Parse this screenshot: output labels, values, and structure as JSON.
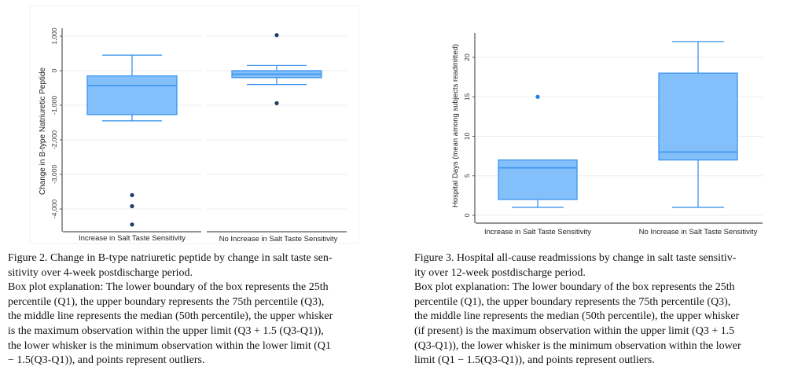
{
  "chart_data": [
    {
      "type": "box",
      "ylabel": "Change in B-type Natriuretic Peptide",
      "yticks": [
        1000,
        0,
        -1000,
        -2000,
        -3000,
        -4000
      ],
      "ytick_labels": [
        "1,000",
        "0",
        "-1,000",
        "-2,000",
        "-3,000",
        "-4,000"
      ],
      "ylim": [
        -4650,
        1350
      ],
      "grid": true,
      "categories": [
        "Increase in Salt Taste Sensitivity",
        "No Increase in Salt Taste Sensitivity"
      ],
      "boxes": [
        {
          "q1": -1270,
          "median": -430,
          "q3": -150,
          "whisker_low": -1450,
          "whisker_high": 450,
          "outliers": [
            -3600,
            -3920,
            -4450
          ]
        },
        {
          "q1": -200,
          "median": -100,
          "q3": 0,
          "whisker_low": -400,
          "whisker_high": 150,
          "outliers": [
            1030,
            -940
          ]
        }
      ],
      "colors": {
        "box": "#82bffb",
        "edge": "#3d94ee",
        "outlier": "#1a3f66"
      }
    },
    {
      "type": "box",
      "ylabel": "Hospital Days (mean among subjects readmitted)",
      "yticks": [
        0,
        5,
        10,
        15,
        20
      ],
      "ytick_labels": [
        "0",
        "5",
        "10",
        "15",
        "20"
      ],
      "ylim": [
        -1,
        23
      ],
      "grid": true,
      "categories": [
        "Increase in Salt Taste Sensitivity",
        "No Increase in Salt Taste Sensitivity"
      ],
      "boxes": [
        {
          "q1": 2,
          "median": 6,
          "q3": 7,
          "whisker_low": 1,
          "whisker_high": null,
          "outliers": [
            15
          ]
        },
        {
          "q1": 7,
          "median": 8,
          "q3": 18,
          "whisker_low": 1,
          "whisker_high": 22,
          "outliers": []
        }
      ],
      "colors": {
        "box": "#82bffb",
        "edge": "#3d94ee",
        "outlier": "#1f7ff0"
      }
    }
  ],
  "captions": {
    "figure2": [
      "Figure 2.  Change in B-type natriuretic peptide by change in salt taste sen-",
      "sitivity over 4-week postdischarge period.",
      "Box plot explanation: The lower boundary of the box represents the 25th",
      "percentile (Q1), the upper boundary represents the 75th percentile (Q3),",
      "the middle line represents the median (50th percentile), the upper whisker",
      "is the maximum observation within the upper limit (Q3 + 1.5 (Q3-Q1)),",
      "the lower whisker is the minimum observation within the lower limit (Q1",
      "− 1.5(Q3-Q1)), and points represent outliers."
    ],
    "figure3": [
      "Figure 3.  Hospital all-cause readmissions by change in salt taste sensitiv-",
      "ity over 12-week postdischarge period.",
      "Box plot explanation: The lower boundary of the box represents the 25th",
      "percentile (Q1), the upper boundary represents the 75th percentile (Q3),",
      "the middle line represents the median (50th percentile), the upper whisker",
      "(if present) is the maximum observation within the upper limit (Q3 + 1.5",
      "(Q3-Q1)), the lower whisker is the minimum observation within the lower",
      "limit (Q1 − 1.5(Q3-Q1)), and points represent outliers."
    ]
  }
}
